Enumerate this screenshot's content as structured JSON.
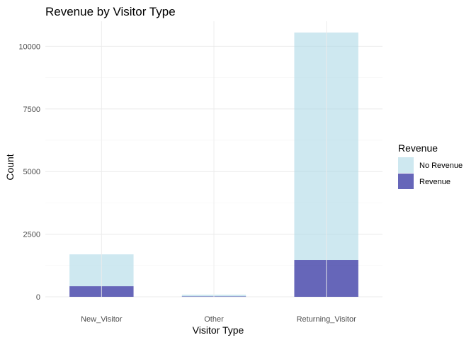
{
  "chart_data": {
    "type": "bar",
    "stacked": true,
    "title": "Revenue by Visitor Type",
    "xlabel": "Visitor Type",
    "ylabel": "Count",
    "categories": [
      "New_Visitor",
      "Other",
      "Returning_Visitor"
    ],
    "series": [
      {
        "name": "No Revenue",
        "values": [
          1272,
          69,
          9081
        ],
        "color": "#add8e6"
      },
      {
        "name": "Revenue",
        "values": [
          422,
          16,
          1470
        ],
        "color": "#00008b"
      }
    ],
    "ylim": [
      0,
      11000
    ],
    "yticks": [
      0,
      2500,
      5000,
      7500,
      10000
    ],
    "grid": true,
    "legend": {
      "title": "Revenue",
      "position": "right",
      "entries": [
        "No Revenue",
        "Revenue"
      ]
    }
  },
  "colors": {
    "no_revenue": "#add8e6",
    "revenue": "#00008b",
    "grid_major": "#ebebeb",
    "grid_minor": "#f5f5f5"
  }
}
